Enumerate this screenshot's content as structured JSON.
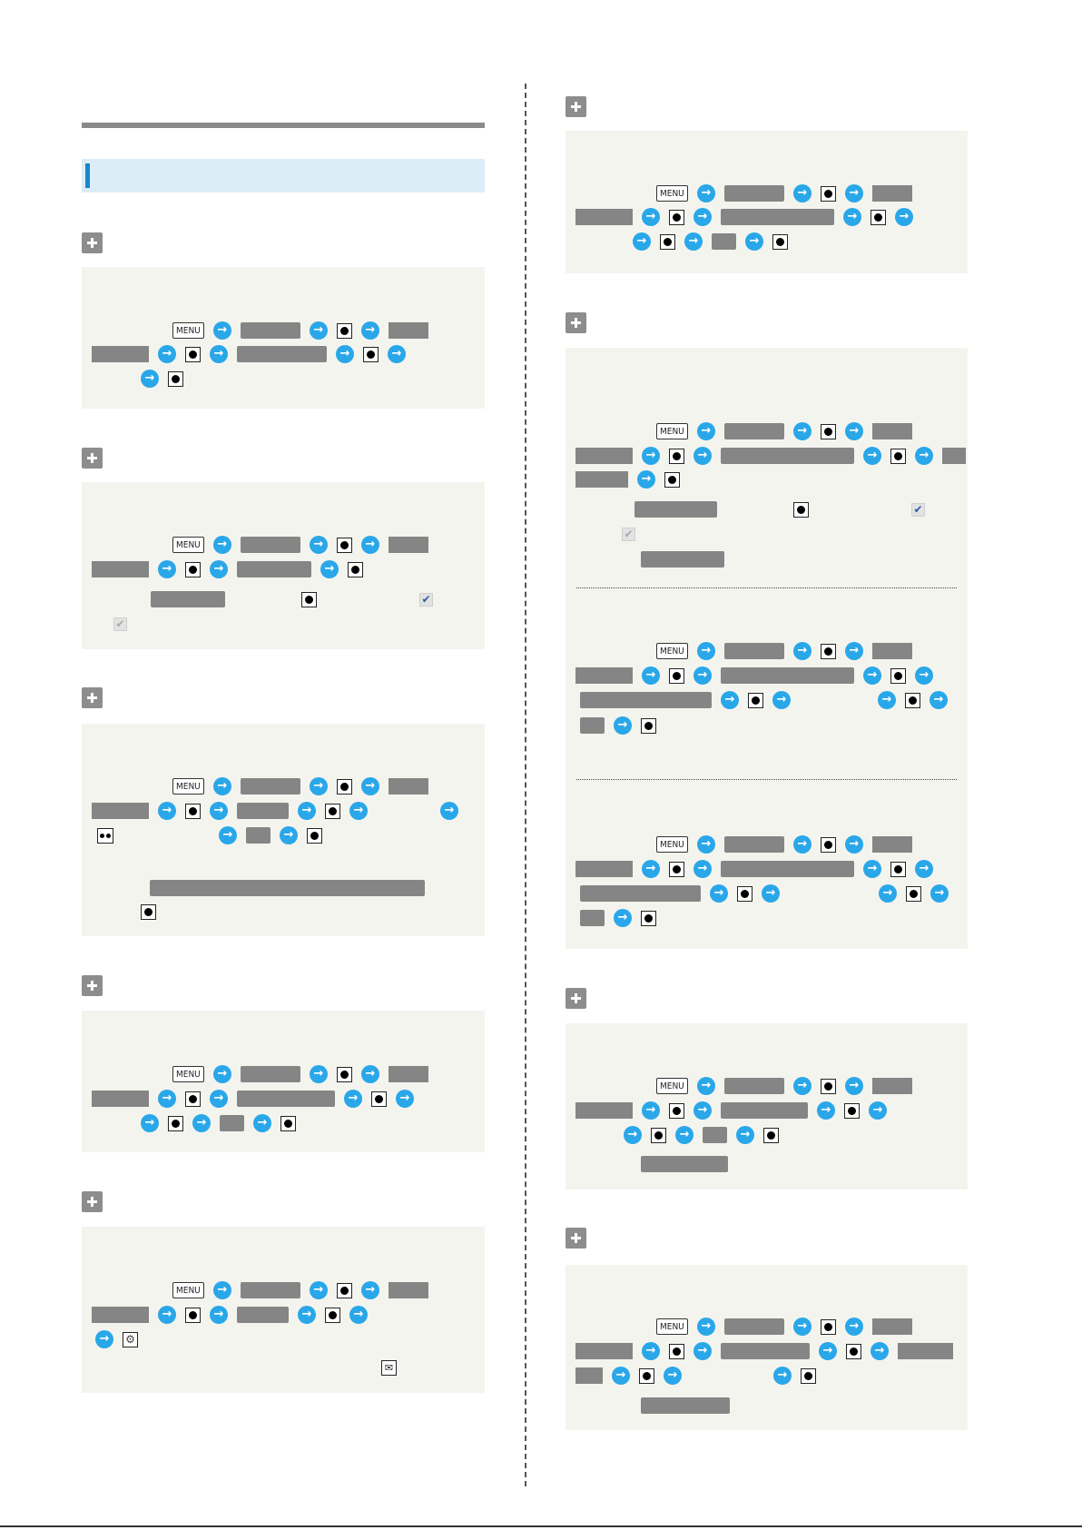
{
  "menu_key": {
    "label": "MENU"
  },
  "icons": {
    "arrow": "arrow-right-icon",
    "center_key": "center-key-icon",
    "plus": "plus-icon",
    "checkbox_on": "checkbox-checked-icon",
    "checkbox_off": "checkbox-unchecked-icon",
    "settings": "settings-icon",
    "mail": "mail-icon",
    "multi_key": "multi-key-icon"
  },
  "colors": {
    "accent_arrow": "#29a7e9",
    "title_band": "#dcedf8",
    "title_bar": "#1a87c9",
    "box_bg": "#f4f4ee",
    "placeholder_gray": "#858585"
  }
}
